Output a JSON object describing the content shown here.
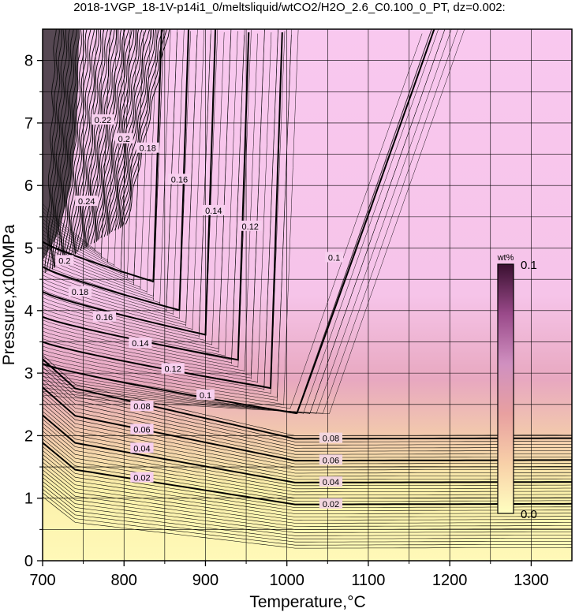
{
  "chart_data": {
    "type": "heatmap",
    "title": "2018-1VGP_18-1V-p14i1_0/meltsliquid/wtCO2/H2O_2.6_C0.100_0_PT, dz=0.002:",
    "xlabel": "Temperature,°C",
    "ylabel": "Pressure,x100MPa",
    "xlim": [
      700,
      1350
    ],
    "ylim": [
      0,
      8.5
    ],
    "x_ticks": [
      "700",
      "800",
      "900",
      "1000",
      "1100",
      "1200",
      "1300"
    ],
    "y_ticks": [
      "0",
      "1",
      "2",
      "3",
      "4",
      "5",
      "6",
      "7",
      "8"
    ],
    "grid": true,
    "colorbar": {
      "title": "wt%",
      "min_label": "0.0",
      "max_label": "0.1",
      "colors": [
        "#ffffc0",
        "#f8d0a8",
        "#e8a0a0",
        "#d090c0",
        "#9a4a8a",
        "#3a1030"
      ]
    },
    "contour_labels": [
      {
        "text": "0.02",
        "x": 1054,
        "y": 0.91
      },
      {
        "text": "0.04",
        "x": 1054,
        "y": 1.26
      },
      {
        "text": "0.06",
        "x": 1054,
        "y": 1.61
      },
      {
        "text": "0.08",
        "x": 1054,
        "y": 1.96
      },
      {
        "text": "0.02",
        "x": 822,
        "y": 1.33
      },
      {
        "text": "0.04",
        "x": 822,
        "y": 1.8
      },
      {
        "text": "0.06",
        "x": 822,
        "y": 2.1
      },
      {
        "text": "0.08",
        "x": 822,
        "y": 2.47
      },
      {
        "text": "0.1",
        "x": 900,
        "y": 2.65
      },
      {
        "text": "0.12",
        "x": 860,
        "y": 3.07
      },
      {
        "text": "0.14",
        "x": 820,
        "y": 3.48
      },
      {
        "text": "0.16",
        "x": 776,
        "y": 3.9
      },
      {
        "text": "0.18",
        "x": 746,
        "y": 4.3
      },
      {
        "text": "0.2",
        "x": 727,
        "y": 4.8
      },
      {
        "text": "0.12",
        "x": 955,
        "y": 5.35
      },
      {
        "text": "0.14",
        "x": 910,
        "y": 5.6
      },
      {
        "text": "0.16",
        "x": 868,
        "y": 6.1
      },
      {
        "text": "0.18",
        "x": 829,
        "y": 6.6
      },
      {
        "text": "0.2",
        "x": 800,
        "y": 6.75
      },
      {
        "text": "0.22",
        "x": 774,
        "y": 7.05
      },
      {
        "text": "0.24",
        "x": 754,
        "y": 5.75
      },
      {
        "text": "0.1",
        "x": 1058,
        "y": 4.85
      }
    ]
  }
}
